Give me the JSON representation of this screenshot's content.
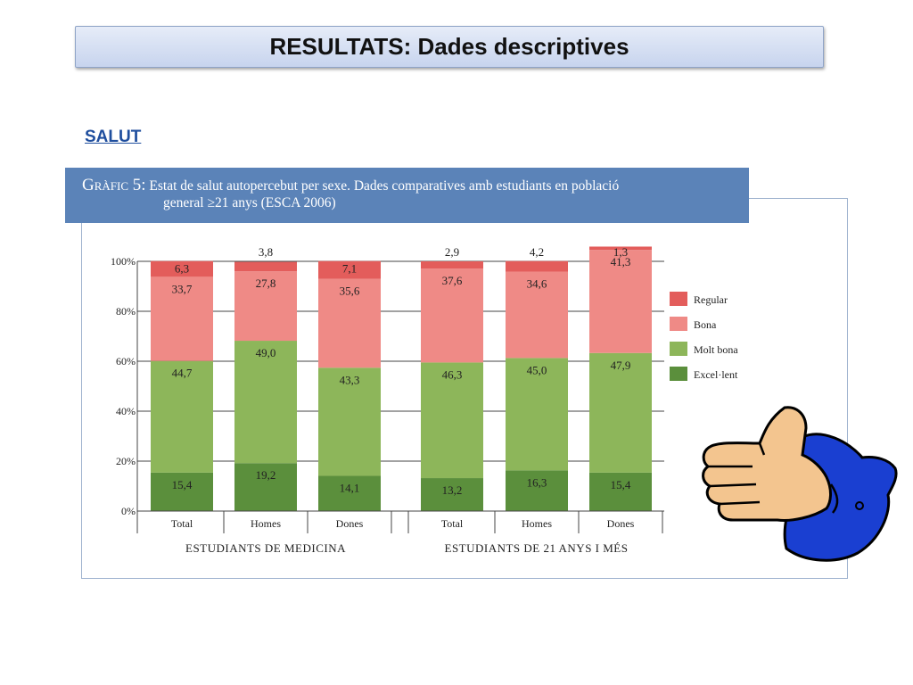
{
  "slide": {
    "title": "RESULTATS: Dades descriptives",
    "section": "SALUT"
  },
  "chart_data": {
    "type": "bar",
    "stacked": true,
    "caption_label": "Gràfic 5:",
    "caption_line1": "Estat de salut autopercebut per sexe. Dades comparatives amb estudiants en població",
    "caption_line2": "general ≥21 anys (ESCA 2006)",
    "categories": [
      "Total",
      "Homes",
      "Dones",
      "Total",
      "Homes",
      "Dones"
    ],
    "groups": [
      {
        "label": "ESTUDIANTS DE MEDICINA",
        "categories": [
          0,
          1,
          2
        ]
      },
      {
        "label": "ESTUDIANTS DE 21 ANYS I MÉS",
        "categories": [
          3,
          4,
          5
        ]
      }
    ],
    "series": [
      {
        "name": "Excel·lent",
        "color": "#5b8f3c",
        "values": [
          15.4,
          19.2,
          14.1,
          13.2,
          16.3,
          15.4
        ],
        "labels": [
          "15,4",
          "19,2",
          "14,1",
          "13,2",
          "16,3",
          "15,4"
        ]
      },
      {
        "name": "Molt bona",
        "color": "#8db65a",
        "values": [
          44.7,
          49.0,
          43.3,
          46.3,
          45.0,
          47.9
        ],
        "labels": [
          "44,7",
          "49,0",
          "43,3",
          "46,3",
          "45,0",
          "47,9"
        ]
      },
      {
        "name": "Bona",
        "color": "#ef8a86",
        "values": [
          33.7,
          27.8,
          35.6,
          37.6,
          34.6,
          41.3
        ],
        "labels": [
          "33,7",
          "27,8",
          "35,6",
          "37,6",
          "34,6",
          "41,3"
        ]
      },
      {
        "name": "Regular",
        "color": "#e35d5b",
        "values": [
          6.3,
          3.8,
          7.1,
          2.9,
          4.2,
          1.3
        ],
        "labels": [
          "6,3",
          "3,8",
          "7,1",
          "2,9",
          "4,2",
          "1,3"
        ]
      }
    ],
    "regular_label_outside": [
      false,
      true,
      false,
      true,
      true,
      true
    ],
    "ylim": [
      0,
      100
    ],
    "yticks": [
      "0%",
      "20%",
      "40%",
      "60%",
      "80%",
      "100%"
    ],
    "grid": true,
    "legend_position": "right",
    "legend_order": [
      "Regular",
      "Bona",
      "Molt bona",
      "Excel·lent"
    ]
  },
  "illustration": {
    "icon": "thumbs-up-icon",
    "hand_color": "#f3c58f",
    "sleeve_color": "#1a3fd1"
  }
}
